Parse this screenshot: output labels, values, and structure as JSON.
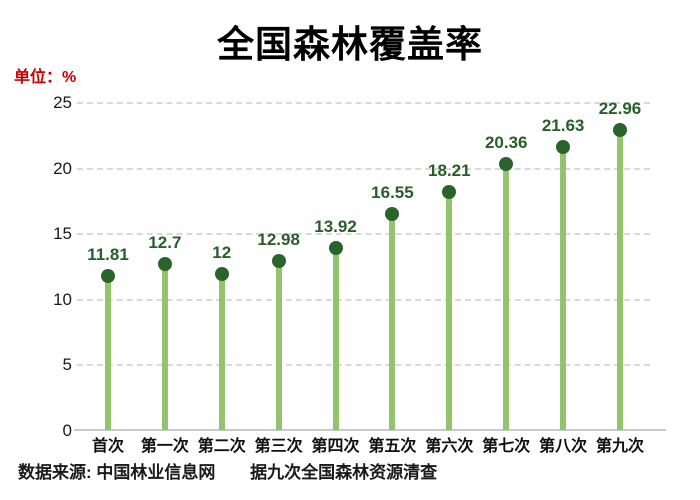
{
  "title": "全国森林覆盖率",
  "unit_label": "单位：%",
  "footer": {
    "source": "数据来源: 中国林业信息网",
    "note": "据九次全国森林资源清查"
  },
  "colors": {
    "title": "#000000",
    "unit_label": "#cc0000",
    "stem": "#93c36c",
    "dot": "#2b642b",
    "value_label": "#266026",
    "gridline": "#d9d9d9",
    "axis_line": "#c9c9c9",
    "tick_label": "#1a1a1a"
  },
  "chart_data": {
    "type": "bar",
    "style": "lollipop",
    "title": "全国森林覆盖率",
    "categories": [
      "首次",
      "第一次",
      "第二次",
      "第三次",
      "第四次",
      "第五次",
      "第六次",
      "第七次",
      "第八次",
      "第九次"
    ],
    "values": [
      11.81,
      12.7,
      12,
      12.98,
      13.92,
      16.55,
      18.21,
      20.36,
      21.63,
      22.96
    ],
    "value_labels": [
      "11.81",
      "12.7",
      "12",
      "12.98",
      "13.92",
      "16.55",
      "18.21",
      "20.36",
      "21.63",
      "22.96"
    ],
    "xlabel": "",
    "ylabel": "单位：%",
    "ylim": [
      0,
      25
    ],
    "yticks": [
      0,
      5,
      10,
      15,
      20,
      25
    ],
    "grid": true,
    "grid_style": "dashed",
    "legend": false
  }
}
